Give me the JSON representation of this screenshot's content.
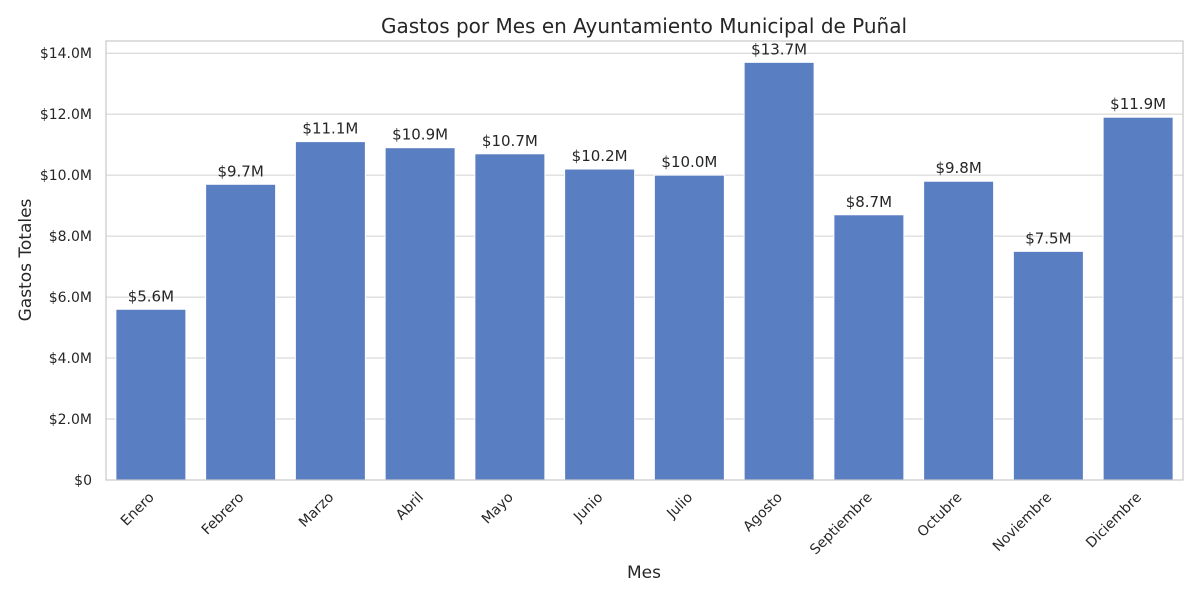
{
  "chart_data": {
    "type": "bar",
    "title": "Gastos por Mes en Ayuntamiento Municipal de Puñal",
    "xlabel": "Mes",
    "ylabel": "Gastos Totales",
    "categories": [
      "Enero",
      "Febrero",
      "Marzo",
      "Abril",
      "Mayo",
      "Junio",
      "Julio",
      "Agosto",
      "Septiembre",
      "Octubre",
      "Noviembre",
      "Diciembre"
    ],
    "values": [
      5.6,
      9.7,
      11.1,
      10.9,
      10.7,
      10.2,
      10.0,
      13.7,
      8.7,
      9.8,
      7.5,
      11.9
    ],
    "value_labels": [
      "$5.6M",
      "$9.7M",
      "$11.1M",
      "$10.9M",
      "$10.7M",
      "$10.2M",
      "$10.0M",
      "$13.7M",
      "$8.7M",
      "$9.8M",
      "$7.5M",
      "$11.9M"
    ],
    "y_ticks": [
      0,
      2,
      4,
      6,
      8,
      10,
      12,
      14
    ],
    "y_tick_labels": [
      "$0",
      "$2.0M",
      "$4.0M",
      "$6.0M",
      "$8.0M",
      "$10.0M",
      "$12.0M",
      "$14.0M"
    ],
    "ylim": [
      0,
      14.4
    ],
    "grid": true,
    "bar_color": "#5a7ec2"
  }
}
